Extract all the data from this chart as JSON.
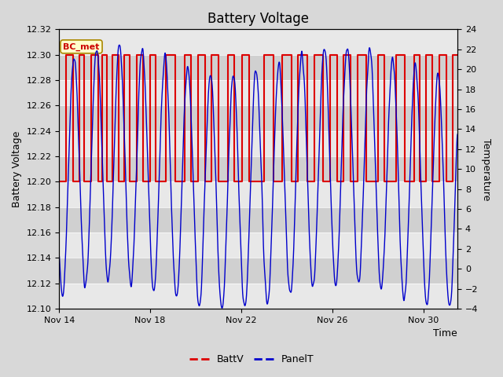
{
  "title": "Battery Voltage",
  "xlabel": "Time",
  "ylabel_left": "Battery Voltage",
  "ylabel_right": "Temperature",
  "ylim_left": [
    12.1,
    12.32
  ],
  "ylim_right": [
    -4,
    24
  ],
  "yticks_left": [
    12.1,
    12.12,
    12.14,
    12.16,
    12.18,
    12.2,
    12.22,
    12.24,
    12.26,
    12.28,
    12.3,
    12.32
  ],
  "yticks_right": [
    -4,
    -2,
    0,
    2,
    4,
    6,
    8,
    10,
    12,
    14,
    16,
    18,
    20,
    22,
    24
  ],
  "xtick_labels": [
    "Nov 14",
    "Nov 18",
    "Nov 22",
    "Nov 26",
    "Nov 30"
  ],
  "xtick_positions": [
    0,
    4,
    8,
    12,
    16
  ],
  "xlim": [
    0,
    17.5
  ],
  "annotation_text": "BC_met",
  "annotation_color_bg": "#ffffcc",
  "annotation_color_border": "#aa8800",
  "annotation_color_text": "#cc0000",
  "batt_color": "#dd0000",
  "panel_color": "#0000cc",
  "fig_bg_color": "#d8d8d8",
  "band_light": "#e8e8e8",
  "band_dark": "#d0d0d0",
  "legend_dash_red": "#dd0000",
  "legend_dash_blue": "#0000cc",
  "title_fontsize": 12,
  "axis_fontsize": 9,
  "tick_fontsize": 8,
  "batt_toggle_times": [
    0.0,
    0.3,
    0.6,
    0.9,
    1.1,
    1.4,
    1.7,
    1.9,
    2.1,
    2.35,
    2.6,
    2.85,
    3.1,
    3.4,
    3.7,
    4.0,
    4.25,
    4.7,
    5.1,
    5.5,
    5.8,
    6.1,
    6.4,
    6.7,
    7.0,
    7.4,
    7.7,
    8.05,
    8.35,
    9.0,
    9.4,
    9.8,
    10.2,
    10.5,
    10.9,
    11.2,
    11.6,
    11.9,
    12.2,
    12.5,
    12.8,
    13.1,
    13.5,
    14.0,
    14.3,
    14.8,
    15.2,
    15.6,
    15.85,
    16.1,
    16.4,
    16.7,
    17.0,
    17.3
  ],
  "batt_start": 12.2
}
